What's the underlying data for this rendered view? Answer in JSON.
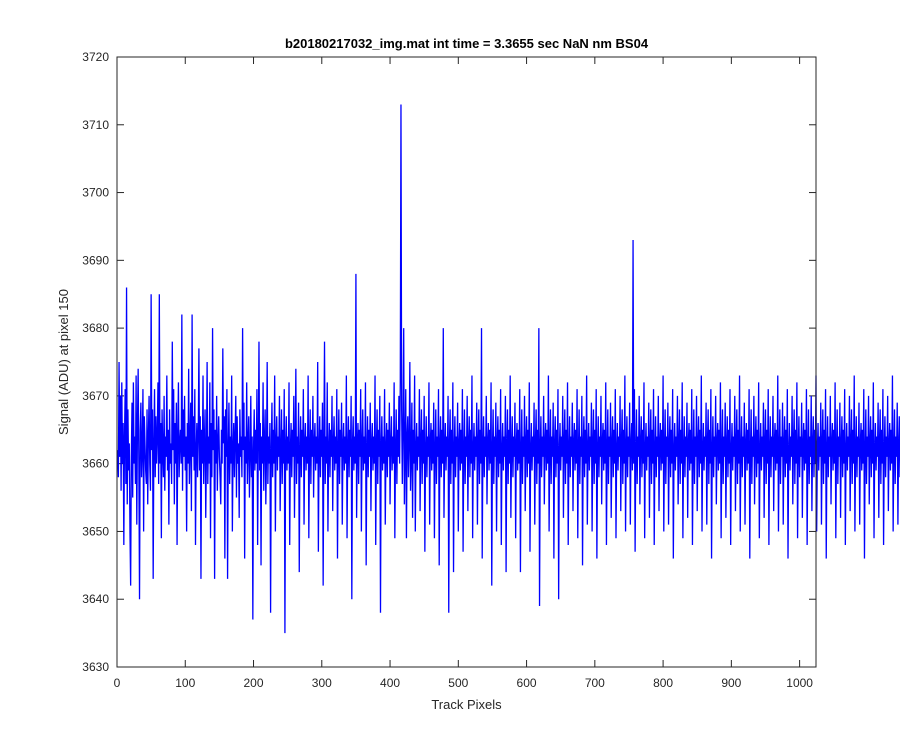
{
  "chart_data": {
    "type": "line",
    "title": "b20180217032_img.mat int time = 3.3655 sec  NaN nm BS04",
    "xlabel": "Track Pixels",
    "ylabel": "Signal (ADU) at pixel 150",
    "xlim": [
      0,
      1024
    ],
    "ylim": [
      3630,
      3720
    ],
    "xticks": [
      0,
      100,
      200,
      300,
      400,
      500,
      600,
      700,
      800,
      900,
      1000
    ],
    "yticks": [
      3630,
      3640,
      3650,
      3660,
      3670,
      3680,
      3690,
      3700,
      3710,
      3720
    ],
    "grid": false,
    "legend": "none",
    "series": [
      {
        "color": "#0000ff",
        "x_start": 1,
        "x_step": 1,
        "baseline": 3662,
        "values": [
          3662,
          3658,
          3675,
          3661,
          3670,
          3656,
          3672,
          3660,
          3666,
          3648,
          3664,
          3671,
          3657,
          3686,
          3654,
          3668,
          3659,
          3663,
          3650,
          3642,
          3661,
          3669,
          3655,
          3672,
          3660,
          3664,
          3657,
          3673,
          3651,
          3666,
          3674,
          3660,
          3640,
          3665,
          3669,
          3658,
          3662,
          3671,
          3650,
          3667,
          3663,
          3659,
          3657,
          3668,
          3654,
          3664,
          3670,
          3660,
          3656,
          3685,
          3662,
          3668,
          3643,
          3663,
          3671,
          3658,
          3667,
          3660,
          3664,
          3672,
          3657,
          3685,
          3660,
          3666,
          3649,
          3668,
          3662,
          3658,
          3670,
          3656,
          3664,
          3661,
          3673,
          3659,
          3665,
          3651,
          3668,
          3660,
          3663,
          3657,
          3678,
          3662,
          3671,
          3654,
          3666,
          3660,
          3669,
          3648,
          3664,
          3672,
          3658,
          3663,
          3665,
          3660,
          3682,
          3656,
          3668,
          3661,
          3670,
          3659,
          3664,
          3650,
          3666,
          3660,
          3674,
          3657,
          3663,
          3669,
          3653,
          3682,
          3661,
          3667,
          3659,
          3671,
          3648,
          3662,
          3666,
          3658,
          3664,
          3677,
          3659,
          3667,
          3643,
          3665,
          3660,
          3673,
          3657,
          3663,
          3668,
          3652,
          3661,
          3675,
          3657,
          3664,
          3660,
          3672,
          3649,
          3666,
          3658,
          3680,
          3662,
          3668,
          3643,
          3665,
          3660,
          3670,
          3656,
          3663,
          3667,
          3661,
          3658,
          3654,
          3665,
          3660,
          3677,
          3663,
          3667,
          3646,
          3668,
          3661,
          3671,
          3643,
          3662,
          3669,
          3657,
          3664,
          3660,
          3673,
          3650,
          3662,
          3666,
          3658,
          3664,
          3670,
          3655,
          3667,
          3660,
          3663,
          3652,
          3668,
          3661,
          3664,
          3658,
          3680,
          3662,
          3669,
          3646,
          3664,
          3660,
          3672,
          3657,
          3663,
          3667,
          3655,
          3661,
          3670,
          3658,
          3664,
          3637,
          3662,
          3668,
          3659,
          3665,
          3660,
          3671,
          3648,
          3663,
          3678,
          3659,
          3666,
          3645,
          3664,
          3660,
          3672,
          3656,
          3663,
          3668,
          3654,
          3661,
          3675,
          3657,
          3664,
          3660,
          3666,
          3638,
          3662,
          3669,
          3658,
          3665,
          3660,
          3673,
          3650,
          3663,
          3667,
          3659,
          3664,
          3661,
          3670,
          3653,
          3662,
          3668,
          3657,
          3665,
          3660,
          3671,
          3635,
          3663,
          3667,
          3659,
          3664,
          3660,
          3672,
          3648,
          3662,
          3666,
          3658,
          3665,
          3661,
          3670,
          3652,
          3663,
          3674,
          3657,
          3664,
          3660,
          3669,
          3644,
          3662,
          3667,
          3658,
          3665,
          3661,
          3671,
          3651,
          3663,
          3666,
          3659,
          3664,
          3660,
          3673,
          3649,
          3662,
          3668,
          3657,
          3665,
          3661,
          3670,
          3655,
          3663,
          3666,
          3659,
          3664,
          3660,
          3675,
          3647,
          3662,
          3667,
          3658,
          3665,
          3661,
          3669,
          3642,
          3663,
          3678,
          3657,
          3664,
          3660,
          3672,
          3650,
          3662,
          3666,
          3658,
          3665,
          3661,
          3670,
          3653,
          3663,
          3667,
          3659,
          3664,
          3660,
          3671,
          3646,
          3662,
          3668,
          3657,
          3665,
          3661,
          3669,
          3651,
          3663,
          3666,
          3659,
          3664,
          3660,
          3673,
          3649,
          3662,
          3667,
          3658,
          3665,
          3661,
          3670,
          3640,
          3663,
          3667,
          3659,
          3664,
          3660,
          3688,
          3652,
          3662,
          3666,
          3657,
          3665,
          3661,
          3671,
          3650,
          3663,
          3668,
          3659,
          3664,
          3660,
          3672,
          3645,
          3662,
          3667,
          3658,
          3665,
          3661,
          3669,
          3653,
          3663,
          3666,
          3659,
          3664,
          3660,
          3673,
          3648,
          3662,
          3668,
          3657,
          3665,
          3661,
          3670,
          3638,
          3663,
          3667,
          3659,
          3664,
          3660,
          3671,
          3651,
          3662,
          3666,
          3658,
          3665,
          3661,
          3669,
          3654,
          3663,
          3667,
          3659,
          3664,
          3660,
          3672,
          3649,
          3662,
          3668,
          3657,
          3665,
          3661,
          3670,
          3660,
          3672,
          3713,
          3668,
          3657,
          3666,
          3680,
          3654,
          3662,
          3671,
          3649,
          3664,
          3667,
          3658,
          3663,
          3675,
          3656,
          3661,
          3669,
          3652,
          3665,
          3660,
          3673,
          3650,
          3662,
          3666,
          3659,
          3664,
          3661,
          3671,
          3653,
          3663,
          3668,
          3657,
          3665,
          3660,
          3670,
          3647,
          3662,
          3667,
          3658,
          3664,
          3661,
          3672,
          3651,
          3663,
          3666,
          3659,
          3665,
          3660,
          3669,
          3649,
          3662,
          3668,
          3657,
          3664,
          3661,
          3671,
          3645,
          3663,
          3667,
          3658,
          3665,
          3660,
          3680,
          3652,
          3662,
          3666,
          3659,
          3664,
          3661,
          3670,
          3638,
          3663,
          3668,
          3657,
          3665,
          3660,
          3672,
          3644,
          3662,
          3667,
          3658,
          3664,
          3661,
          3669,
          3650,
          3663,
          3666,
          3659,
          3665,
          3660,
          3671,
          3647,
          3662,
          3668,
          3657,
          3664,
          3661,
          3670,
          3653,
          3663,
          3667,
          3658,
          3665,
          3660,
          3673,
          3649,
          3662,
          3666,
          3659,
          3664,
          3661,
          3669,
          3651,
          3663,
          3668,
          3657,
          3665,
          3660,
          3680,
          3646,
          3662,
          3667,
          3658,
          3664,
          3661,
          3670,
          3654,
          3663,
          3666,
          3659,
          3665,
          3660,
          3672,
          3642,
          3662,
          3668,
          3657,
          3664,
          3661,
          3669,
          3650,
          3663,
          3667,
          3658,
          3665,
          3660,
          3671,
          3648,
          3662,
          3666,
          3659,
          3664,
          3661,
          3670,
          3644,
          3663,
          3668,
          3657,
          3665,
          3660,
          3673,
          3652,
          3662,
          3667,
          3658,
          3664,
          3661,
          3669,
          3649,
          3663,
          3666,
          3659,
          3665,
          3660,
          3671,
          3644,
          3662,
          3668,
          3657,
          3664,
          3661,
          3670,
          3653,
          3663,
          3667,
          3658,
          3665,
          3660,
          3672,
          3647,
          3662,
          3666,
          3659,
          3664,
          3661,
          3669,
          3651,
          3663,
          3668,
          3657,
          3665,
          3660,
          3680,
          3639,
          3662,
          3667,
          3658,
          3664,
          3661,
          3670,
          3654,
          3663,
          3666,
          3659,
          3665,
          3660,
          3673,
          3650,
          3662,
          3668,
          3657,
          3664,
          3661,
          3669,
          3646,
          3663,
          3667,
          3658,
          3665,
          3660,
          3671,
          3640,
          3662,
          3666,
          3659,
          3664,
          3661,
          3670,
          3652,
          3663,
          3668,
          3657,
          3665,
          3660,
          3672,
          3648,
          3662,
          3667,
          3658,
          3664,
          3661,
          3669,
          3653,
          3663,
          3666,
          3659,
          3665,
          3660,
          3671,
          3649,
          3662,
          3668,
          3657,
          3664,
          3661,
          3670,
          3645,
          3663,
          3667,
          3658,
          3665,
          3660,
          3673,
          3651,
          3662,
          3666,
          3659,
          3664,
          3661,
          3669,
          3650,
          3663,
          3668,
          3657,
          3665,
          3660,
          3671,
          3646,
          3662,
          3667,
          3658,
          3664,
          3661,
          3670,
          3654,
          3663,
          3666,
          3659,
          3665,
          3660,
          3672,
          3648,
          3662,
          3668,
          3657,
          3664,
          3661,
          3669,
          3652,
          3663,
          3667,
          3658,
          3665,
          3660,
          3671,
          3649,
          3662,
          3666,
          3659,
          3664,
          3661,
          3670,
          3653,
          3663,
          3668,
          3657,
          3665,
          3660,
          3673,
          3650,
          3662,
          3667,
          3658,
          3664,
          3661,
          3669,
          3651,
          3663,
          3666,
          3659,
          3693,
          3660,
          3671,
          3647,
          3662,
          3668,
          3657,
          3664,
          3661,
          3670,
          3654,
          3663,
          3667,
          3658,
          3665,
          3660,
          3672,
          3649,
          3662,
          3666,
          3659,
          3664,
          3661,
          3669,
          3652,
          3663,
          3668,
          3657,
          3665,
          3660,
          3671,
          3648,
          3662,
          3667,
          3658,
          3664,
          3661,
          3670,
          3653,
          3663,
          3666,
          3659,
          3665,
          3660,
          3673,
          3650,
          3662,
          3668,
          3657,
          3664,
          3661,
          3669,
          3651,
          3663,
          3667,
          3658,
          3665,
          3660,
          3671,
          3646,
          3662,
          3666,
          3659,
          3664,
          3661,
          3670,
          3654,
          3663,
          3668,
          3657,
          3665,
          3660,
          3672,
          3649,
          3662,
          3667,
          3658,
          3664,
          3661,
          3669,
          3652,
          3663,
          3666,
          3659,
          3665,
          3660,
          3671,
          3648,
          3662,
          3668,
          3657,
          3664,
          3661,
          3670,
          3653,
          3663,
          3667,
          3658,
          3665,
          3660,
          3673,
          3650,
          3662,
          3666,
          3659,
          3664,
          3661,
          3669,
          3651,
          3663,
          3668,
          3657,
          3665,
          3660,
          3671,
          3646,
          3662,
          3667,
          3658,
          3664,
          3661,
          3670,
          3654,
          3663,
          3666,
          3659,
          3665,
          3660,
          3672,
          3649,
          3662,
          3668,
          3657,
          3664,
          3661,
          3669,
          3652,
          3663,
          3667,
          3658,
          3665,
          3660,
          3671,
          3648,
          3662,
          3666,
          3659,
          3664,
          3661,
          3670,
          3653,
          3663,
          3668,
          3657,
          3665,
          3660,
          3673,
          3650,
          3662,
          3667,
          3658,
          3664,
          3661,
          3669,
          3651,
          3663,
          3666,
          3659,
          3665,
          3660,
          3671,
          3646,
          3662,
          3668,
          3657,
          3664,
          3661,
          3670,
          3654,
          3663,
          3667,
          3658,
          3665,
          3660,
          3672,
          3649,
          3662,
          3666,
          3659,
          3664,
          3661,
          3669,
          3652,
          3663,
          3668,
          3657,
          3665,
          3660,
          3671,
          3648,
          3662,
          3667,
          3658,
          3664,
          3661,
          3670,
          3653,
          3663,
          3666,
          3659,
          3665,
          3660,
          3673,
          3650,
          3662,
          3668,
          3657,
          3664,
          3661,
          3669,
          3651,
          3663,
          3667,
          3658,
          3665,
          3660,
          3671,
          3646,
          3662,
          3666,
          3659,
          3664,
          3661,
          3670,
          3654,
          3663,
          3668,
          3657,
          3665,
          3660,
          3672,
          3649,
          3662,
          3667,
          3658,
          3664,
          3661,
          3669,
          3652,
          3663,
          3666,
          3659,
          3665,
          3660,
          3671,
          3648,
          3662,
          3668,
          3657,
          3664,
          3661,
          3670,
          3653,
          3663,
          3667,
          3658,
          3665,
          3660,
          3673,
          3650,
          3662,
          3666,
          3659,
          3664,
          3661,
          3669,
          3651,
          3663,
          3668,
          3657,
          3665,
          3660,
          3671,
          3646,
          3662,
          3667,
          3658,
          3664,
          3661,
          3670,
          3654,
          3663,
          3666,
          3659,
          3665,
          3660,
          3672,
          3649,
          3662,
          3668,
          3657,
          3664,
          3661,
          3669,
          3652,
          3663,
          3667,
          3658,
          3665,
          3660,
          3671,
          3648,
          3662,
          3666,
          3659,
          3664,
          3661,
          3670,
          3653,
          3663,
          3668,
          3657,
          3665,
          3660,
          3673,
          3650,
          3662,
          3667,
          3658,
          3664,
          3661,
          3669,
          3651,
          3663,
          3666,
          3659,
          3665,
          3660,
          3671,
          3646,
          3662,
          3668,
          3657,
          3664,
          3661,
          3670,
          3654,
          3663,
          3667,
          3658,
          3665,
          3660,
          3672,
          3649,
          3662,
          3666,
          3659,
          3664,
          3661,
          3669,
          3652,
          3663,
          3668,
          3657,
          3665,
          3660,
          3671,
          3648,
          3662,
          3667,
          3658,
          3664,
          3661,
          3670,
          3653,
          3663,
          3666,
          3659,
          3665,
          3660,
          3673,
          3650,
          3662,
          3668,
          3657,
          3664,
          3661,
          3669,
          3651,
          3663,
          3667,
          3658,
          3665,
          3660
        ]
      }
    ]
  }
}
